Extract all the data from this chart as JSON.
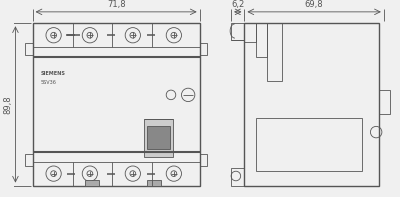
{
  "bg_color": "#f0f0f0",
  "line_color": "#555555",
  "dim_color": "#555555",
  "text_color": "#555555",
  "fig_width": 4.0,
  "fig_height": 1.97,
  "dpi": 100,
  "dim_71_8": "71,8",
  "dim_89_8": "89,8",
  "dim_6_2": "6,2",
  "dim_69_8": "69,8",
  "label_siemens": "SIEMENS",
  "label_model": "5SV36"
}
